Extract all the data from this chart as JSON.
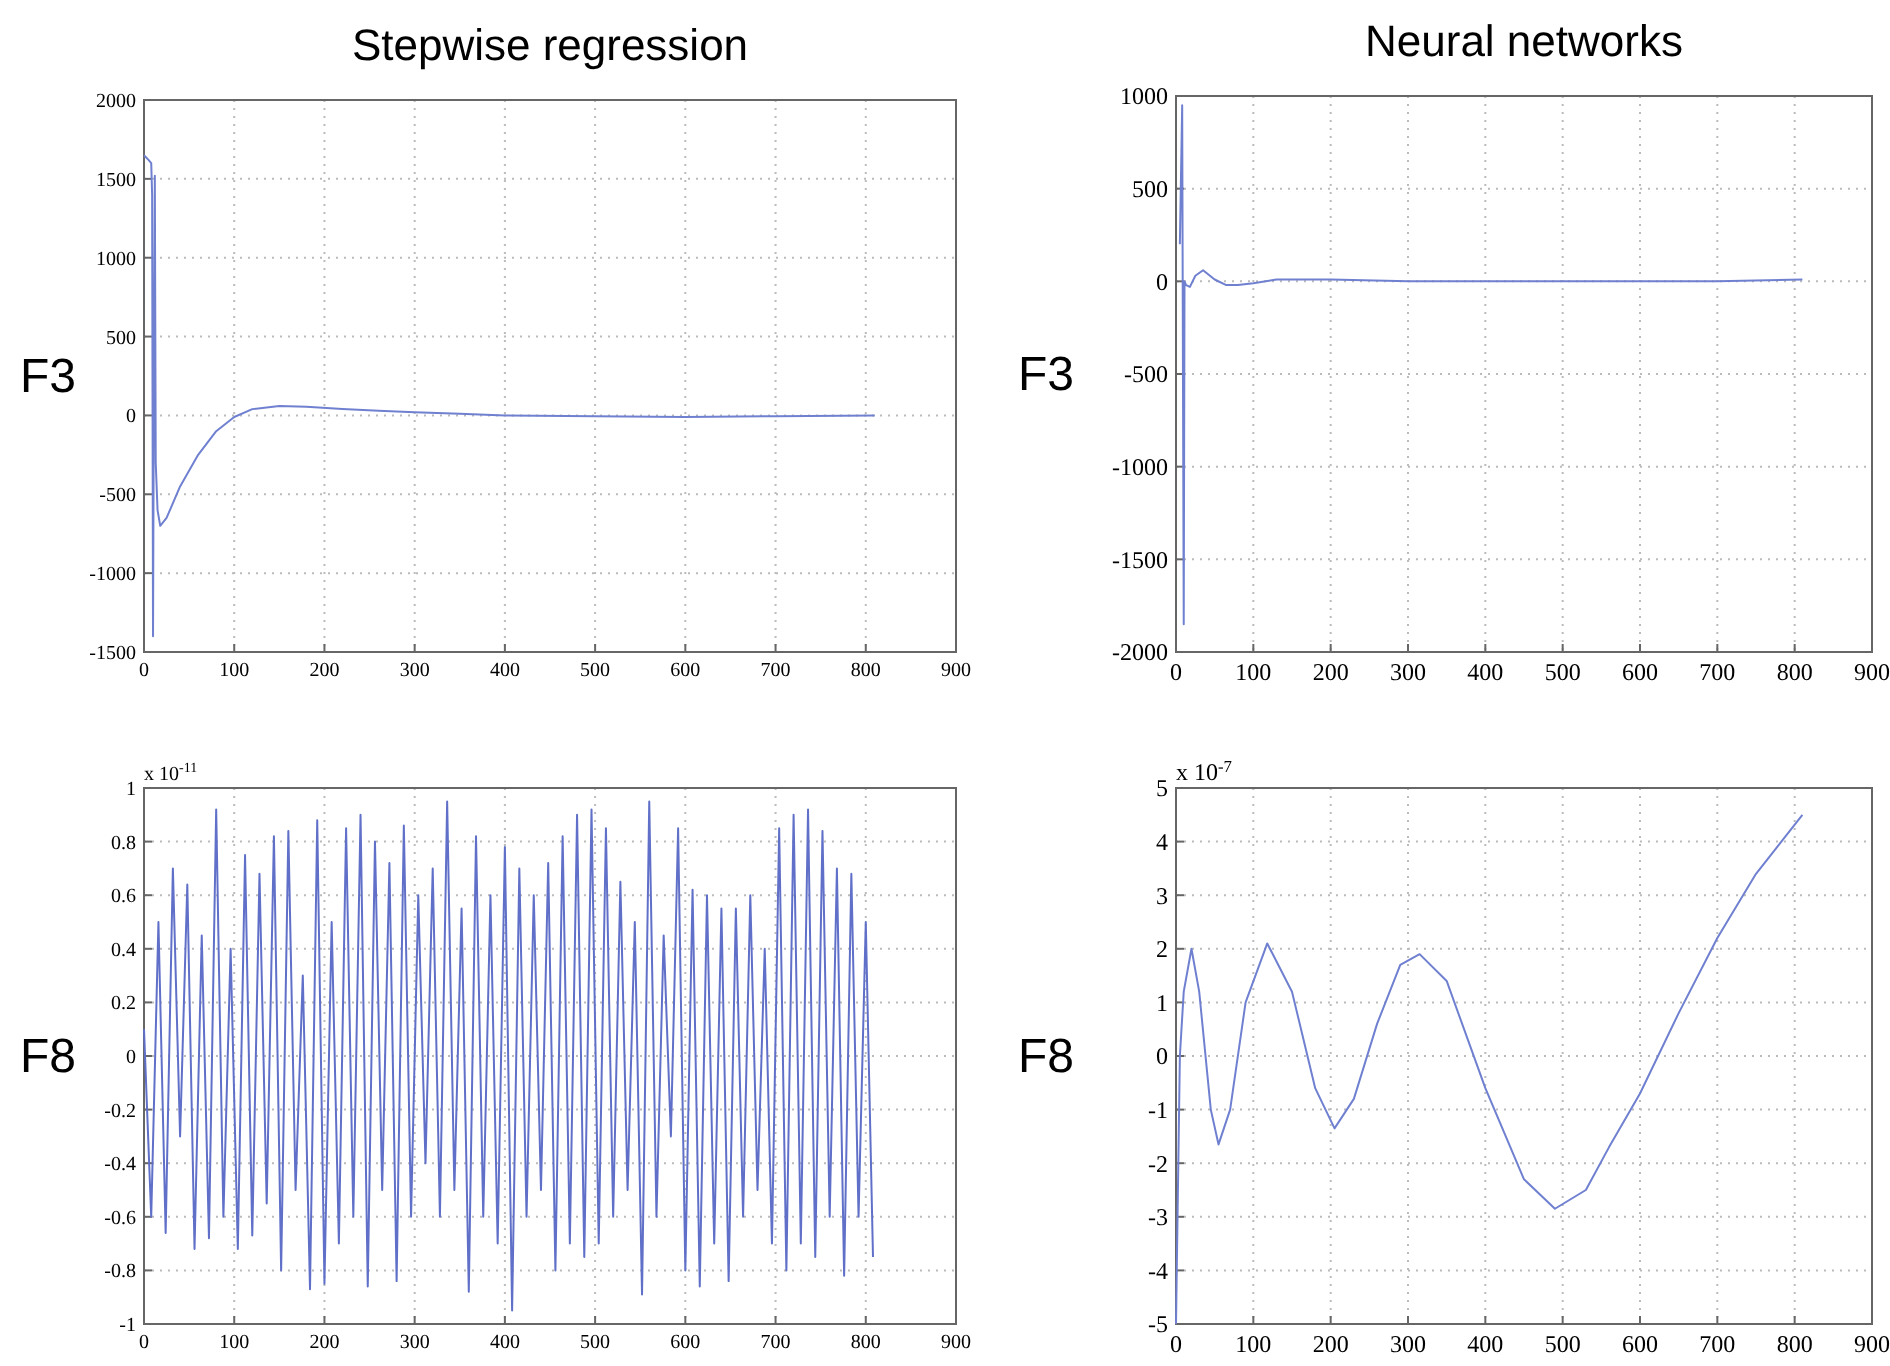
{
  "chart_data": [
    {
      "type": "line",
      "title": "Stepwise regression",
      "ylabel": "F3",
      "xlim": [
        0,
        900
      ],
      "ylim": [
        -1500,
        2000
      ],
      "xticks": [
        0,
        100,
        200,
        300,
        400,
        500,
        600,
        700,
        800,
        900
      ],
      "yticks": [
        -1500,
        -1000,
        -500,
        0,
        500,
        1000,
        1500,
        2000
      ],
      "grid": true,
      "series": [
        {
          "color": "#7080d0",
          "x": [
            0,
            5,
            8,
            9,
            10,
            11,
            12,
            13,
            15,
            18,
            25,
            40,
            60,
            80,
            100,
            120,
            150,
            180,
            220,
            260,
            300,
            350,
            400,
            500,
            600,
            700,
            810
          ],
          "values": [
            1650,
            1620,
            1600,
            1400,
            -1400,
            300,
            1520,
            -300,
            -600,
            -700,
            -650,
            -450,
            -250,
            -100,
            -10,
            40,
            60,
            55,
            40,
            30,
            20,
            10,
            0,
            -5,
            -10,
            -5,
            0
          ]
        }
      ]
    },
    {
      "type": "line",
      "title": "Neural networks",
      "ylabel": "F3",
      "xlim": [
        0,
        900
      ],
      "ylim": [
        -2000,
        1000
      ],
      "xticks": [
        0,
        100,
        200,
        300,
        400,
        500,
        600,
        700,
        800,
        900
      ],
      "yticks": [
        -2000,
        -1500,
        -1000,
        -500,
        0,
        500,
        1000
      ],
      "grid": true,
      "series": [
        {
          "color": "#7080d0",
          "x": [
            5,
            8,
            9,
            10,
            11,
            13,
            18,
            25,
            35,
            50,
            65,
            80,
            100,
            130,
            200,
            300,
            500,
            700,
            810
          ],
          "values": [
            200,
            950,
            -500,
            -1850,
            0,
            -20,
            -30,
            30,
            60,
            10,
            -20,
            -20,
            -10,
            10,
            10,
            0,
            0,
            0,
            10
          ]
        }
      ]
    },
    {
      "type": "line",
      "ylabel": "F8",
      "xlim": [
        0,
        900
      ],
      "ylim": [
        -1,
        1
      ],
      "xticks": [
        0,
        100,
        200,
        300,
        400,
        500,
        600,
        700,
        800,
        900
      ],
      "yticks": [
        -1,
        -0.8,
        -0.6,
        -0.4,
        -0.2,
        0,
        0.2,
        0.4,
        0.6,
        0.8,
        1
      ],
      "grid": true,
      "annotations": [
        "x 10$^{-11}$"
      ],
      "series": [
        {
          "color": "#6070c8",
          "x": [
            0,
            8,
            16,
            24,
            32,
            40,
            48,
            56,
            64,
            72,
            80,
            88,
            96,
            104,
            112,
            120,
            128,
            136,
            144,
            152,
            160,
            168,
            176,
            184,
            192,
            200,
            208,
            216,
            224,
            232,
            240,
            248,
            256,
            264,
            272,
            280,
            288,
            296,
            304,
            312,
            320,
            328,
            336,
            344,
            352,
            360,
            368,
            376,
            384,
            392,
            400,
            408,
            416,
            424,
            432,
            440,
            448,
            456,
            464,
            472,
            480,
            488,
            496,
            504,
            512,
            520,
            528,
            536,
            544,
            552,
            560,
            568,
            576,
            584,
            592,
            600,
            608,
            616,
            624,
            632,
            640,
            648,
            656,
            664,
            672,
            680,
            688,
            696,
            704,
            712,
            720,
            728,
            736,
            744,
            752,
            760,
            768,
            776,
            784,
            792,
            800,
            808
          ],
          "values": [
            0.1,
            -0.6,
            0.5,
            -0.66,
            0.7,
            -0.3,
            0.64,
            -0.72,
            0.45,
            -0.68,
            0.92,
            -0.6,
            0.4,
            -0.72,
            0.75,
            -0.67,
            0.68,
            -0.55,
            0.82,
            -0.8,
            0.84,
            -0.5,
            0.3,
            -0.87,
            0.88,
            -0.85,
            0.5,
            -0.7,
            0.85,
            -0.6,
            0.9,
            -0.86,
            0.8,
            -0.5,
            0.72,
            -0.84,
            0.86,
            -0.6,
            0.6,
            -0.4,
            0.7,
            -0.6,
            0.95,
            -0.5,
            0.55,
            -0.88,
            0.82,
            -0.6,
            0.6,
            -0.7,
            0.78,
            -0.95,
            0.7,
            -0.6,
            0.6,
            -0.5,
            0.72,
            -0.8,
            0.82,
            -0.7,
            0.9,
            -0.75,
            0.92,
            -0.7,
            0.85,
            -0.6,
            0.65,
            -0.5,
            0.5,
            -0.89,
            0.95,
            -0.6,
            0.45,
            -0.3,
            0.85,
            -0.8,
            0.62,
            -0.86,
            0.6,
            -0.7,
            0.55,
            -0.84,
            0.55,
            -0.6,
            0.6,
            -0.5,
            0.4,
            -0.7,
            0.85,
            -0.8,
            0.9,
            -0.7,
            0.92,
            -0.75,
            0.84,
            -0.6,
            0.7,
            -0.82,
            0.68,
            -0.6,
            0.5,
            -0.75
          ]
        }
      ]
    },
    {
      "type": "line",
      "ylabel": "F8",
      "xlim": [
        0,
        900
      ],
      "ylim": [
        -5,
        5
      ],
      "xticks": [
        0,
        100,
        200,
        300,
        400,
        500,
        600,
        700,
        800,
        900
      ],
      "yticks": [
        -5,
        -4,
        -3,
        -2,
        -1,
        0,
        1,
        2,
        3,
        4,
        5
      ],
      "grid": true,
      "annotations": [
        "x 10$^{-7}$"
      ],
      "series": [
        {
          "color": "#7080d0",
          "x": [
            0,
            5,
            10,
            20,
            30,
            45,
            55,
            70,
            90,
            118,
            150,
            180,
            205,
            230,
            260,
            290,
            315,
            350,
            400,
            450,
            490,
            530,
            560,
            600,
            650,
            700,
            750,
            810
          ],
          "values": [
            -5,
            0,
            1.2,
            2,
            1.2,
            -1,
            -1.65,
            -1,
            1,
            2.1,
            1.2,
            -0.6,
            -1.35,
            -0.8,
            0.6,
            1.7,
            1.9,
            1.4,
            -0.6,
            -2.3,
            -2.85,
            -2.5,
            -1.7,
            -0.7,
            0.8,
            2.2,
            3.4,
            4.5
          ]
        }
      ]
    }
  ]
}
